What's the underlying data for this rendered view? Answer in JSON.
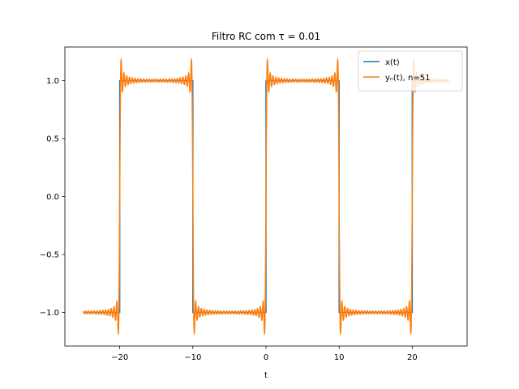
{
  "chart_data": {
    "type": "line",
    "title": "Filtro RC com τ = 0.01",
    "xlabel": "t",
    "ylabel": "",
    "xlim": [
      -27.5,
      27.5
    ],
    "ylim": [
      -1.29,
      1.29
    ],
    "grid": false,
    "legend_position": "top-right",
    "x_ticks": [
      -20,
      -10,
      0,
      10,
      20
    ],
    "x_tick_labels": [
      "−20",
      "−10",
      "0",
      "10",
      "20"
    ],
    "y_ticks": [
      -1.0,
      -0.5,
      0.0,
      0.5,
      1.0
    ],
    "y_tick_labels": [
      "−1.0",
      "−0.5",
      "0.0",
      "0.5",
      "1.0"
    ],
    "series": [
      {
        "name": "x(t)",
        "color": "#1f77b4",
        "kind": "square-wave",
        "x_range": [
          -25,
          25
        ],
        "transitions": [
          -20,
          -10,
          0,
          10,
          20
        ],
        "initial_level": -1,
        "levels": [
          -1,
          1,
          -1,
          1,
          -1,
          1
        ]
      },
      {
        "name": "yₙ(t), n=51",
        "color": "#ff7f0e",
        "kind": "fourier-square-wave",
        "x_range": [
          -25,
          25
        ],
        "period": 20,
        "harmonics": 51,
        "overshoot_peak": 1.18
      }
    ]
  }
}
